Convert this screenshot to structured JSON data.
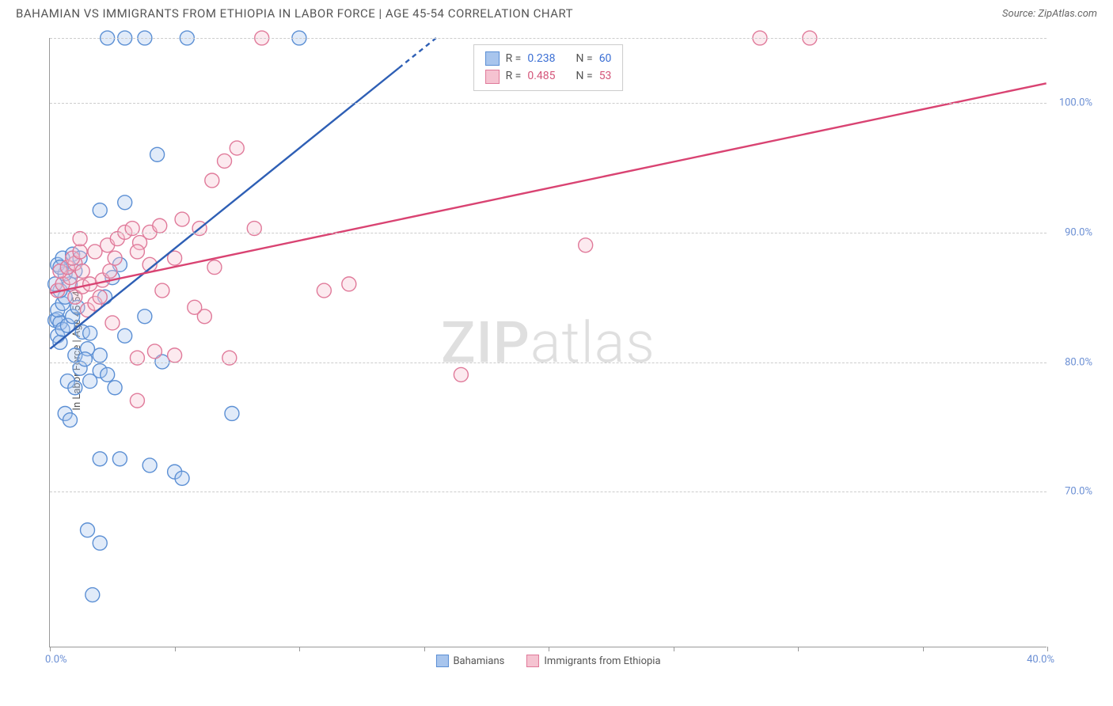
{
  "title": "BAHAMIAN VS IMMIGRANTS FROM ETHIOPIA IN LABOR FORCE | AGE 45-54 CORRELATION CHART",
  "source_label": "Source: ZipAtlas.com",
  "watermark": "ZIPatlas",
  "chart": {
    "type": "scatter",
    "ylabel": "In Labor Force | Age 45-54",
    "xlim": [
      0,
      40
    ],
    "ylim": [
      58,
      105
    ],
    "x_ticks": [
      0,
      5,
      10,
      15,
      20,
      25,
      30,
      35,
      40
    ],
    "x_tick_labels_shown": {
      "0": "0.0%",
      "40": "40.0%"
    },
    "y_gridlines": [
      70,
      80,
      90,
      100,
      105
    ],
    "y_tick_labels": {
      "70": "70.0%",
      "80": "80.0%",
      "90": "90.0%",
      "100": "100.0%"
    },
    "background_color": "#ffffff",
    "grid_color": "#cccccc",
    "axis_color": "#999999",
    "label_fontsize": 13,
    "title_fontsize": 15,
    "marker_radius": 9,
    "marker_fill_opacity": 0.35,
    "marker_stroke_width": 1.4,
    "trend_line_width": 2.4,
    "series": {
      "bahamians": {
        "label": "Bahamians",
        "color_fill": "#a8c5ed",
        "color_stroke": "#5b8fd4",
        "trend_color": "#2e5fb5",
        "trend": {
          "x1": 0,
          "y1": 81.0,
          "x2": 15.5,
          "y2": 105.0,
          "dash_from_x": 14.0
        },
        "R": 0.238,
        "N": 60,
        "points": [
          [
            0.2,
            83.2
          ],
          [
            0.3,
            83.3
          ],
          [
            0.4,
            83.0
          ],
          [
            0.3,
            84.0
          ],
          [
            0.5,
            84.5
          ],
          [
            0.6,
            85.0
          ],
          [
            0.4,
            85.5
          ],
          [
            0.8,
            86.0
          ],
          [
            0.6,
            86.8
          ],
          [
            1.0,
            87.0
          ],
          [
            0.3,
            87.5
          ],
          [
            0.5,
            88.0
          ],
          [
            0.9,
            88.3
          ],
          [
            1.2,
            88.0
          ],
          [
            0.3,
            82.0
          ],
          [
            0.4,
            81.5
          ],
          [
            0.5,
            82.5
          ],
          [
            0.7,
            82.8
          ],
          [
            0.9,
            83.5
          ],
          [
            1.1,
            84.2
          ],
          [
            1.3,
            82.3
          ],
          [
            1.5,
            81.0
          ],
          [
            1.6,
            82.2
          ],
          [
            1.0,
            80.5
          ],
          [
            1.2,
            79.5
          ],
          [
            1.4,
            80.2
          ],
          [
            0.7,
            78.5
          ],
          [
            1.0,
            78.0
          ],
          [
            0.6,
            76.0
          ],
          [
            0.8,
            75.5
          ],
          [
            1.6,
            78.5
          ],
          [
            2.0,
            79.3
          ],
          [
            2.3,
            79.0
          ],
          [
            2.6,
            78.0
          ],
          [
            2.2,
            85.0
          ],
          [
            2.5,
            86.5
          ],
          [
            2.8,
            87.5
          ],
          [
            2.0,
            91.7
          ],
          [
            3.0,
            92.3
          ],
          [
            2.3,
            105.0
          ],
          [
            3.0,
            105.0
          ],
          [
            3.8,
            105.0
          ],
          [
            4.3,
            96.0
          ],
          [
            5.5,
            105.0
          ],
          [
            10.0,
            105.0
          ],
          [
            2.0,
            72.5
          ],
          [
            2.8,
            72.5
          ],
          [
            4.0,
            72.0
          ],
          [
            5.0,
            71.5
          ],
          [
            5.3,
            71.0
          ],
          [
            1.5,
            67.0
          ],
          [
            2.0,
            66.0
          ],
          [
            1.7,
            62.0
          ],
          [
            2.0,
            80.5
          ],
          [
            3.0,
            82.0
          ],
          [
            3.8,
            83.5
          ],
          [
            4.5,
            80.0
          ],
          [
            7.3,
            76.0
          ],
          [
            0.2,
            86.0
          ],
          [
            0.4,
            87.3
          ]
        ]
      },
      "ethiopia": {
        "label": "Immigrants from Ethiopia",
        "color_fill": "#f5c3d1",
        "color_stroke": "#e07a9a",
        "trend_color": "#d94372",
        "trend": {
          "x1": 0,
          "y1": 85.3,
          "x2": 40.0,
          "y2": 101.5
        },
        "R": 0.485,
        "N": 53,
        "points": [
          [
            0.3,
            85.5
          ],
          [
            0.5,
            86.0
          ],
          [
            0.8,
            86.5
          ],
          [
            0.4,
            87.0
          ],
          [
            0.7,
            87.3
          ],
          [
            1.0,
            87.6
          ],
          [
            1.3,
            87.0
          ],
          [
            0.9,
            88.0
          ],
          [
            1.2,
            88.5
          ],
          [
            1.0,
            85.0
          ],
          [
            1.3,
            85.8
          ],
          [
            1.6,
            86.0
          ],
          [
            1.5,
            84.0
          ],
          [
            1.8,
            84.5
          ],
          [
            2.0,
            85.0
          ],
          [
            2.1,
            86.3
          ],
          [
            2.4,
            87.0
          ],
          [
            2.6,
            88.0
          ],
          [
            2.3,
            89.0
          ],
          [
            2.7,
            89.5
          ],
          [
            3.0,
            90.0
          ],
          [
            3.3,
            90.3
          ],
          [
            3.6,
            89.2
          ],
          [
            4.0,
            90.0
          ],
          [
            4.4,
            90.5
          ],
          [
            3.5,
            88.5
          ],
          [
            4.0,
            87.5
          ],
          [
            4.5,
            85.5
          ],
          [
            5.0,
            88.0
          ],
          [
            5.3,
            91.0
          ],
          [
            6.0,
            90.3
          ],
          [
            6.5,
            94.0
          ],
          [
            7.0,
            95.5
          ],
          [
            7.5,
            96.5
          ],
          [
            8.5,
            105.0
          ],
          [
            6.2,
            83.5
          ],
          [
            5.8,
            84.2
          ],
          [
            5.0,
            80.5
          ],
          [
            4.2,
            80.8
          ],
          [
            3.5,
            80.3
          ],
          [
            7.2,
            80.3
          ],
          [
            6.6,
            87.3
          ],
          [
            3.5,
            77.0
          ],
          [
            11.0,
            85.5
          ],
          [
            12.0,
            86.0
          ],
          [
            8.2,
            90.3
          ],
          [
            1.2,
            89.5
          ],
          [
            16.5,
            79.0
          ],
          [
            21.5,
            89.0
          ],
          [
            28.5,
            105.0
          ],
          [
            30.5,
            105.0
          ],
          [
            1.8,
            88.5
          ],
          [
            2.5,
            83.0
          ]
        ]
      }
    }
  },
  "stats_box": {
    "rows": [
      {
        "swatch_fill": "#a8c5ed",
        "swatch_stroke": "#5b8fd4",
        "r_label": "R =",
        "r_val": "0.238",
        "n_label": "N =",
        "n_val": "60",
        "val_class": "stat-val-blue"
      },
      {
        "swatch_fill": "#f5c3d1",
        "swatch_stroke": "#e07a9a",
        "r_label": "R =",
        "r_val": "0.485",
        "n_label": "N =",
        "n_val": "53",
        "val_class": "stat-val-pink"
      }
    ]
  },
  "legend": {
    "items": [
      {
        "label": "Bahamians",
        "fill": "#a8c5ed",
        "stroke": "#5b8fd4"
      },
      {
        "label": "Immigrants from Ethiopia",
        "fill": "#f5c3d1",
        "stroke": "#e07a9a"
      }
    ]
  }
}
